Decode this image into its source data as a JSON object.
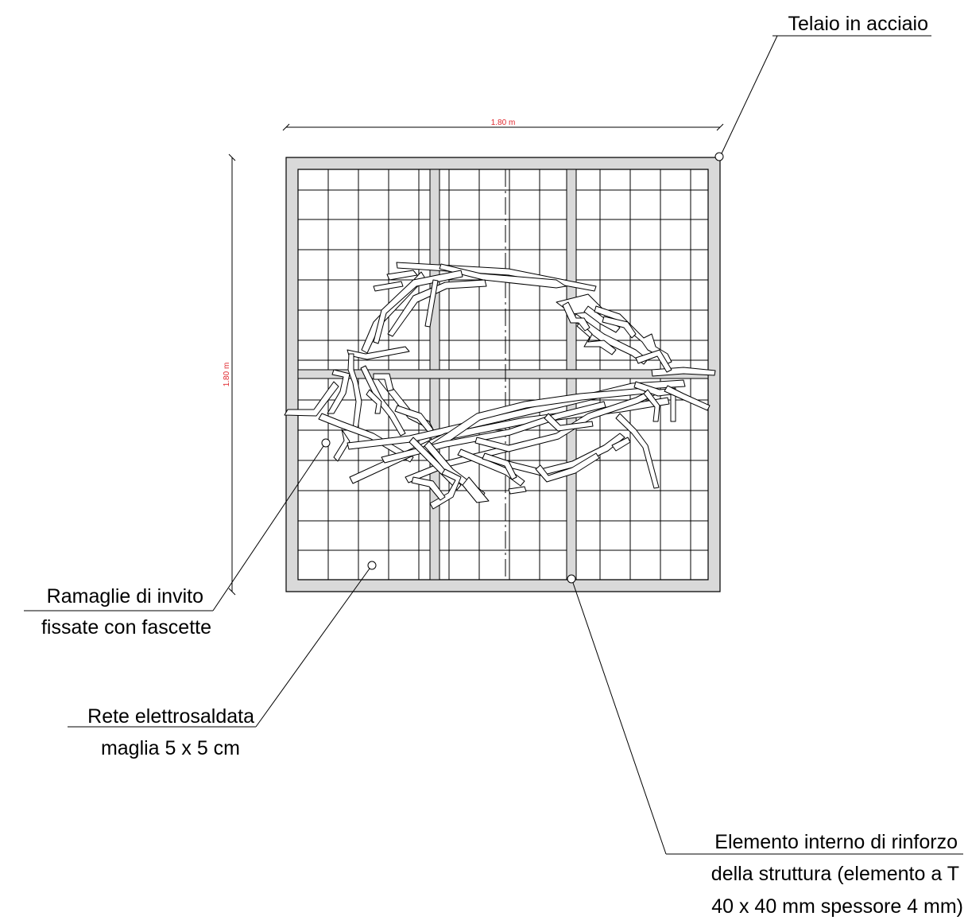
{
  "dimensions": {
    "width": "1.80 m",
    "height": "1.80 m"
  },
  "labels": {
    "frame": "Telaio in acciaio",
    "branches": [
      "Ramaglie di invito",
      "fissate con fascette"
    ],
    "mesh": [
      "Rete elettrosaldata",
      "maglia 5 x 5 cm"
    ],
    "reinforcement": [
      "Elemento interno di rinforzo",
      "della struttura (elemento a T",
      "40 x 40 mm spessore 4 mm)"
    ]
  },
  "colors": {
    "frame_fill": "#d9d9d9",
    "line": "#000000",
    "dimension_text": "#e0262c"
  }
}
